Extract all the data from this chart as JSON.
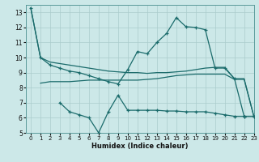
{
  "xlabel": "Humidex (Indice chaleur)",
  "background_color": "#cce8e8",
  "grid_color": "#b0d0d0",
  "line_color": "#1a6b6b",
  "xlim": [
    -0.5,
    23
  ],
  "ylim": [
    5,
    13.5
  ],
  "yticks": [
    5,
    6,
    7,
    8,
    9,
    10,
    11,
    12,
    13
  ],
  "xticks": [
    0,
    1,
    2,
    3,
    4,
    5,
    6,
    7,
    8,
    9,
    10,
    11,
    12,
    13,
    14,
    15,
    16,
    17,
    18,
    19,
    20,
    21,
    22,
    23
  ],
  "line1_x": [
    0,
    1,
    2,
    3,
    4,
    5,
    6,
    7,
    8,
    9,
    10,
    11,
    12,
    13,
    14,
    15,
    16,
    17,
    18,
    19,
    20,
    21,
    22,
    23
  ],
  "line1_y": [
    13.3,
    10.0,
    9.7,
    9.6,
    9.5,
    9.4,
    9.3,
    9.2,
    9.1,
    9.05,
    9.0,
    9.0,
    8.95,
    9.0,
    9.0,
    9.05,
    9.1,
    9.2,
    9.3,
    9.35,
    9.35,
    8.6,
    8.6,
    6.1
  ],
  "line2_x": [
    1,
    2,
    3,
    4,
    5,
    6,
    7,
    8,
    9,
    10,
    11,
    12,
    13,
    14,
    15,
    16,
    17,
    18,
    19,
    20,
    21,
    22,
    23
  ],
  "line2_y": [
    8.3,
    8.4,
    8.4,
    8.4,
    8.45,
    8.5,
    8.5,
    8.5,
    8.5,
    8.5,
    8.5,
    8.55,
    8.6,
    8.7,
    8.8,
    8.85,
    8.9,
    8.9,
    8.9,
    8.9,
    8.55,
    8.55,
    6.1
  ],
  "line3_x": [
    0,
    1,
    2,
    3,
    4,
    5,
    6,
    7,
    8,
    9,
    10,
    11,
    12,
    13,
    14,
    15,
    16,
    17,
    18,
    19,
    20,
    21,
    22,
    23
  ],
  "line3_y": [
    13.3,
    10.0,
    9.5,
    9.3,
    9.1,
    9.0,
    8.8,
    8.6,
    8.4,
    8.25,
    9.2,
    10.4,
    10.25,
    11.0,
    11.6,
    12.65,
    12.05,
    12.0,
    11.85,
    9.3,
    9.3,
    8.6,
    6.1,
    6.1
  ],
  "line4_x": [
    3,
    4,
    5,
    6,
    7,
    8,
    9,
    10,
    11,
    12,
    13,
    14,
    15,
    16,
    17,
    18,
    19,
    20,
    21,
    22,
    23
  ],
  "line4_y": [
    7.0,
    6.4,
    6.2,
    6.0,
    5.0,
    6.4,
    7.5,
    6.5,
    6.5,
    6.5,
    6.5,
    6.45,
    6.45,
    6.4,
    6.4,
    6.4,
    6.3,
    6.2,
    6.1,
    6.1,
    6.1
  ]
}
